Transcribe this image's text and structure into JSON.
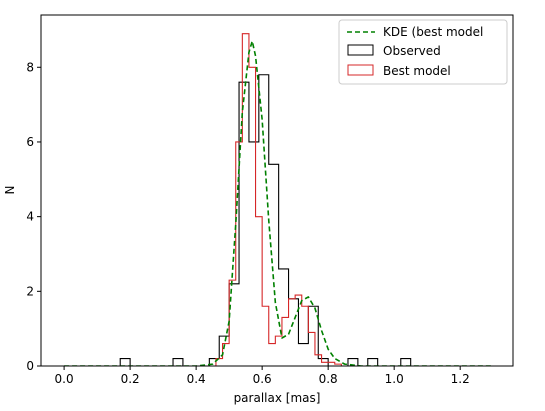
{
  "chart_data": {
    "type": "line",
    "xlabel": "parallax [mas]",
    "ylabel": "N",
    "xlim": [
      -0.07,
      1.36
    ],
    "ylim": [
      0,
      9.4
    ],
    "xticks": [
      0.0,
      0.2,
      0.4,
      0.6,
      0.8,
      1.0,
      1.2
    ],
    "yticks": [
      0,
      2,
      4,
      6,
      8
    ],
    "xtick_labels": [
      "0.0",
      "0.2",
      "0.4",
      "0.6",
      "0.8",
      "1.0",
      "1.2"
    ],
    "ytick_labels": [
      "0",
      "2",
      "4",
      "6",
      "8"
    ],
    "grid": false,
    "legend_position": "top-right",
    "legend": [
      {
        "label": "KDE (best model",
        "style": "dashed-line",
        "color": "#008000"
      },
      {
        "label": "Observed",
        "style": "box",
        "color": "#000000"
      },
      {
        "label": "Best model",
        "style": "box",
        "color": "#d62728"
      }
    ],
    "series": [
      {
        "name": "Observed",
        "type": "step-histogram",
        "color": "#000000",
        "edges": [
          0.17,
          0.2,
          0.33,
          0.36,
          0.44,
          0.47,
          0.5,
          0.53,
          0.56,
          0.59,
          0.62,
          0.65,
          0.68,
          0.71,
          0.74,
          0.77,
          0.8,
          0.83,
          0.86,
          0.89,
          0.92,
          0.95,
          1.02,
          1.05
        ],
        "values": [
          0.2,
          0,
          0.2,
          0,
          0.2,
          0.8,
          2.2,
          7.6,
          6.0,
          7.8,
          5.4,
          2.6,
          1.8,
          0.6,
          1.6,
          0.2,
          0,
          0,
          0.2,
          0,
          0.2,
          0,
          0.2
        ]
      },
      {
        "name": "Best model",
        "type": "step-histogram",
        "color": "#d62728",
        "edges": [
          0.46,
          0.48,
          0.5,
          0.52,
          0.54,
          0.56,
          0.58,
          0.6,
          0.62,
          0.64,
          0.66,
          0.68,
          0.7,
          0.72,
          0.74,
          0.76,
          0.78,
          0.8,
          0.82,
          0.84
        ],
        "values": [
          0.2,
          0.6,
          2.3,
          6.0,
          8.9,
          8.0,
          4.0,
          1.6,
          0.6,
          0.8,
          1.3,
          1.8,
          1.9,
          1.6,
          0.9,
          0.3,
          0.1,
          0.1,
          0.05
        ]
      },
      {
        "name": "KDE (best model",
        "type": "dashed-line",
        "color": "#008000",
        "x": [
          0.0,
          0.3,
          0.4,
          0.45,
          0.48,
          0.5,
          0.52,
          0.54,
          0.56,
          0.57,
          0.58,
          0.6,
          0.62,
          0.64,
          0.66,
          0.68,
          0.7,
          0.72,
          0.74,
          0.76,
          0.78,
          0.8,
          0.82,
          0.85,
          0.9,
          1.0,
          1.3
        ],
        "y": [
          0.0,
          0.0,
          0.0,
          0.05,
          0.3,
          1.2,
          3.8,
          6.8,
          8.4,
          8.7,
          8.3,
          6.6,
          3.9,
          1.7,
          0.75,
          0.85,
          1.3,
          1.75,
          1.85,
          1.55,
          0.95,
          0.45,
          0.2,
          0.05,
          0.0,
          0.0,
          0.0
        ]
      }
    ]
  }
}
